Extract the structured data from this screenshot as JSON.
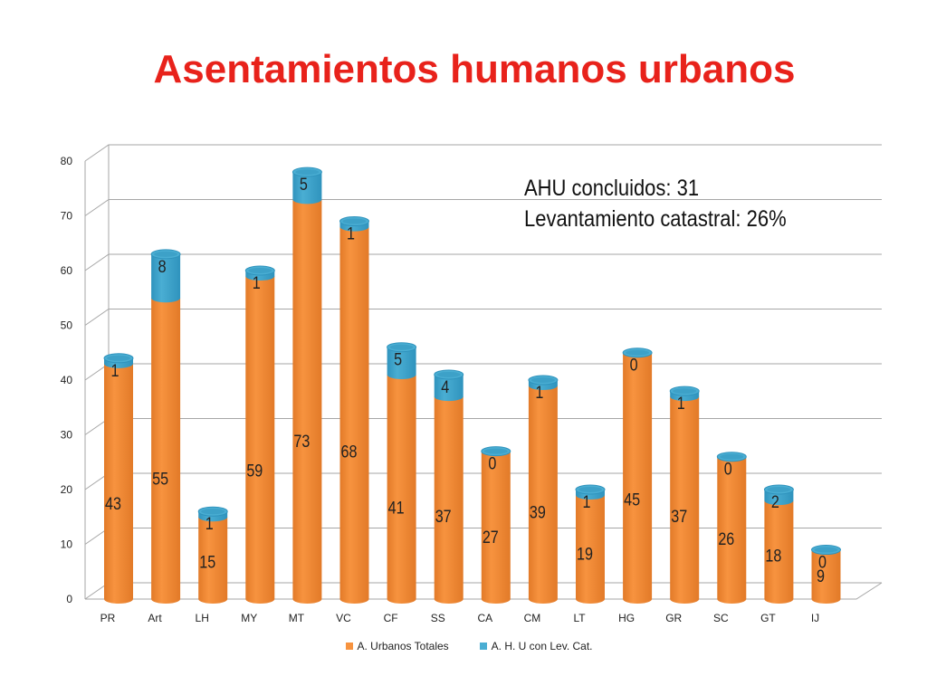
{
  "title": "Asentamientos humanos urbanos",
  "annotations": [
    "AHU concluidos: 31",
    "Levantamiento catastral: 26%"
  ],
  "colors": {
    "series1": "#f7933f",
    "series1_dark": "#e27a28",
    "series2": "#4aaed3",
    "series2_dark": "#2f93bd",
    "grid": "#a6a6a6"
  },
  "chart_data": {
    "type": "bar",
    "stacked": true,
    "style": "3d-cylinder",
    "title": "Asentamientos humanos urbanos",
    "xlabel": "",
    "ylabel": "",
    "ylim": [
      0,
      80
    ],
    "yticks": [
      0,
      10,
      20,
      30,
      40,
      50,
      60,
      70,
      80
    ],
    "grid": true,
    "legend_position": "bottom",
    "categories": [
      "PR",
      "Art",
      "LH",
      "MY",
      "MT",
      "VC",
      "CF",
      "SS",
      "CA",
      "CM",
      "LT",
      "HG",
      "GR",
      "SC",
      "GT",
      "IJ"
    ],
    "series": [
      {
        "name": "A. Urbanos Totales",
        "values": [
          43,
          55,
          15,
          59,
          73,
          68,
          41,
          37,
          27,
          39,
          19,
          45,
          37,
          26,
          18,
          9
        ]
      },
      {
        "name": "A. H. U con Lev. Cat.",
        "values": [
          1,
          8,
          1,
          1,
          5,
          1,
          5,
          4,
          0,
          1,
          1,
          0,
          1,
          0,
          2,
          0
        ]
      }
    ]
  }
}
